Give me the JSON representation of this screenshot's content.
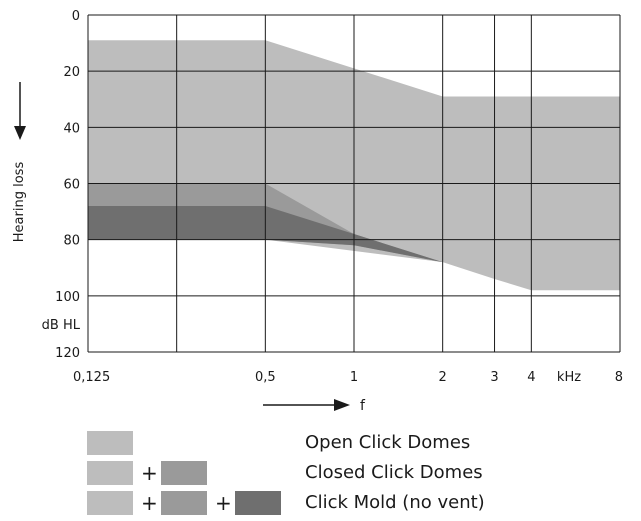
{
  "chart_data": {
    "type": "area",
    "x_scale": "log",
    "x": [
      0.125,
      0.5,
      1,
      2,
      3,
      4,
      8
    ],
    "x_tick_labels": [
      "0,125",
      "0,5",
      "1",
      "2",
      "3",
      "4",
      "8"
    ],
    "x_unit_label": "kHz",
    "x_arrow_label": "f",
    "y_ticks": [
      0,
      20,
      40,
      60,
      80,
      100,
      120
    ],
    "y_unit_label": "dB HL",
    "ylabel": "Hearing loss",
    "ylim": [
      0,
      120
    ],
    "y_inverted": true,
    "grid": true,
    "series": [
      {
        "name": "Open Click Domes",
        "color": "#bdbdbd",
        "upper": [
          [
            0.125,
            9
          ],
          [
            0.5,
            9
          ],
          [
            1,
            19
          ],
          [
            2,
            29
          ],
          [
            8,
            29
          ]
        ],
        "lower": [
          [
            0.125,
            80
          ],
          [
            0.5,
            80
          ],
          [
            2,
            88
          ],
          [
            3,
            94
          ],
          [
            4,
            98
          ],
          [
            8,
            98
          ]
        ]
      },
      {
        "name": "Closed Click Domes",
        "color": "#9a9a9a",
        "upper": [
          [
            0.125,
            60
          ],
          [
            0.5,
            60
          ],
          [
            1,
            78
          ],
          [
            2,
            88
          ]
        ],
        "lower": [
          [
            0.125,
            80
          ],
          [
            0.5,
            80
          ],
          [
            1,
            82
          ],
          [
            2,
            88
          ]
        ]
      },
      {
        "name": "Click Mold (no vent)",
        "color": "#6f6f6f",
        "upper": [
          [
            0.125,
            68
          ],
          [
            0.5,
            68
          ],
          [
            1,
            78
          ],
          [
            2,
            88
          ]
        ],
        "lower": [
          [
            0.125,
            80
          ],
          [
            0.5,
            80
          ],
          [
            1,
            82
          ],
          [
            2,
            88
          ]
        ]
      }
    ]
  },
  "legend": {
    "plus": "+",
    "rows": [
      {
        "label": "Open Click Domes",
        "swatches": [
          "#bdbdbd"
        ]
      },
      {
        "label": "Closed Click Domes",
        "swatches": [
          "#bdbdbd",
          "#9a9a9a"
        ]
      },
      {
        "label": "Click Mold (no vent)",
        "swatches": [
          "#bdbdbd",
          "#9a9a9a",
          "#6f6f6f"
        ]
      }
    ]
  }
}
